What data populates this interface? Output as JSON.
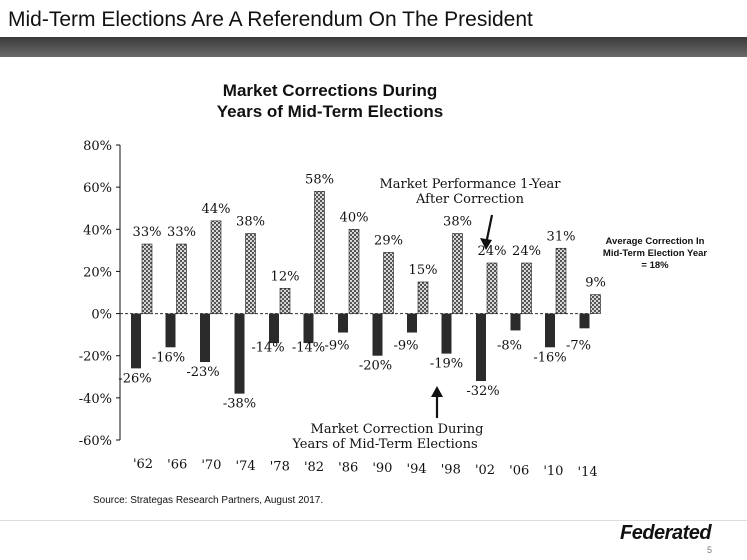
{
  "header": {
    "title": "Mid-Term Elections Are A Referendum On The President"
  },
  "chart_data": {
    "type": "bar",
    "title": "Market Corrections During Years of Mid-Term Elections",
    "categories": [
      "'62",
      "'66",
      "'70",
      "'74",
      "'78",
      "'82",
      "'86",
      "'90",
      "'94",
      "'98",
      "'02",
      "'06",
      "'10",
      "'14"
    ],
    "series": [
      {
        "name": "Market Correction During Years of Mid-Term Elections",
        "values": [
          -26,
          -16,
          -23,
          -38,
          -14,
          -14,
          -9,
          -20,
          -9,
          -19,
          -32,
          -8,
          -16,
          -7
        ],
        "labels": [
          "-26%",
          "-16%",
          "-23%",
          "-38%",
          "-14%",
          "-14%",
          "-9%",
          "-20%",
          "-9%",
          "-19%",
          "-32%",
          "-8%",
          "-16%",
          "-7%"
        ]
      },
      {
        "name": "Market Performance 1-Year After Correction",
        "values": [
          33,
          33,
          44,
          38,
          12,
          58,
          40,
          29,
          15,
          38,
          24,
          24,
          31,
          9
        ],
        "labels": [
          "33%",
          "33%",
          "44%",
          "38%",
          "12%",
          "58%",
          "40%",
          "29%",
          "15%",
          "38%",
          "24%",
          "24%",
          "31%",
          "9%"
        ]
      }
    ],
    "y_ticks": [
      "80%",
      "60%",
      "40%",
      "20%",
      "0%",
      "-20%",
      "-40%",
      "-60%"
    ],
    "ylim": [
      -60,
      80
    ],
    "annotations": {
      "after_correction": "Market Performance 1-Year After Correction",
      "correction": "Market Correction During Years of Mid-Term Elections",
      "average": "Average Correction In Mid-Term Election Year = 18%"
    },
    "colors": {
      "correction": "#2b2b2b",
      "after": "#8a8a8a"
    }
  },
  "footer": {
    "source": "Source: Strategas Research Partners, August 2017.",
    "brand": "Federated",
    "page": "5"
  }
}
